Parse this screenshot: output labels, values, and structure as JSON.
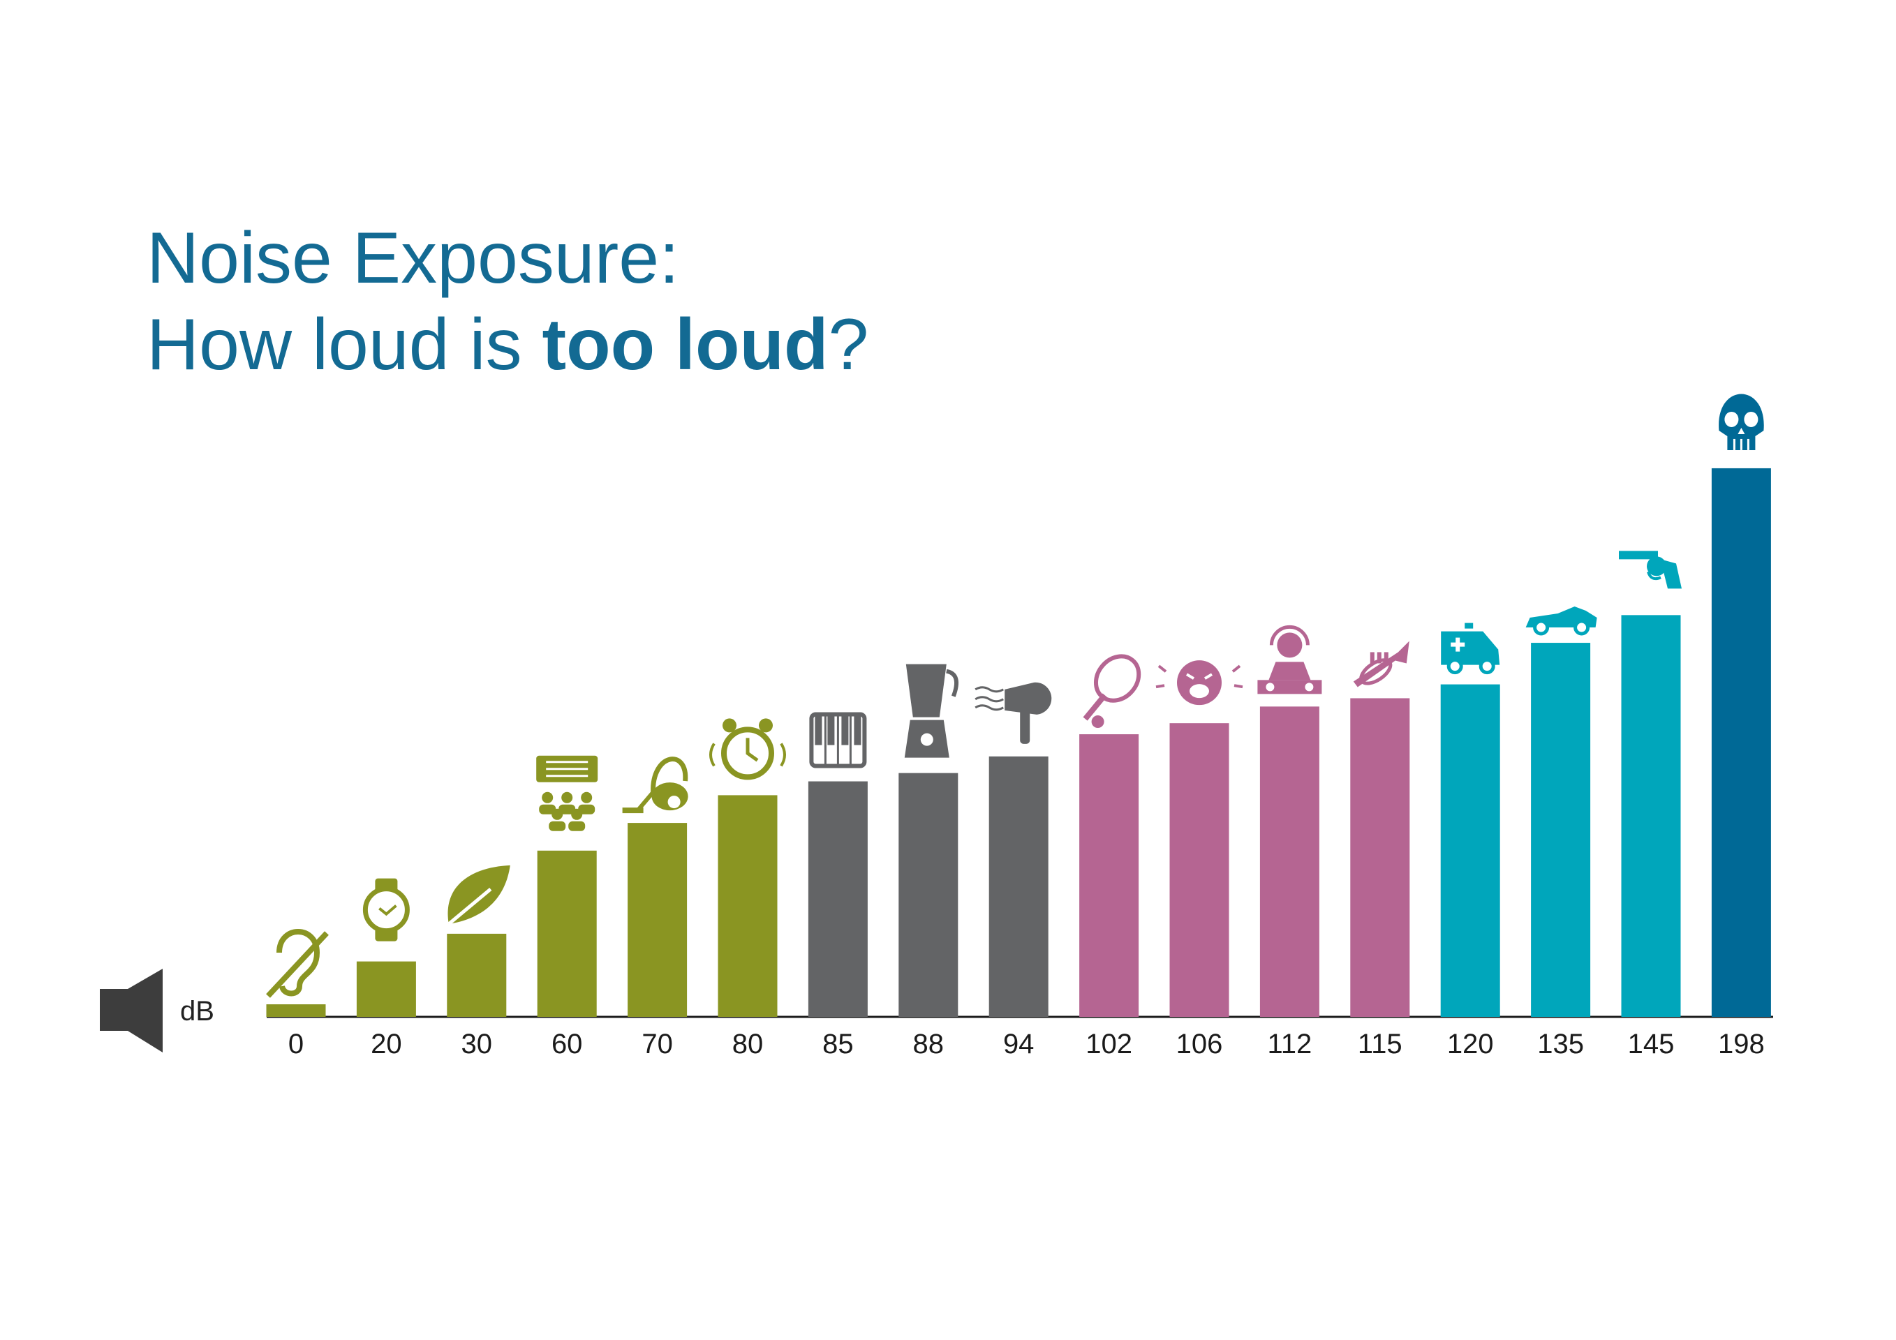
{
  "title": {
    "line1": "Noise Exposure:",
    "line2_pre": "How loud is ",
    "line2_bold": "too loud",
    "line2_post": "?"
  },
  "unit_label": "dB",
  "chart_data": {
    "type": "bar",
    "title": "Noise Exposure: How loud is too loud?",
    "xlabel": "",
    "ylabel": "dB",
    "ylim": [
      0,
      198
    ],
    "categories": [
      "0",
      "20",
      "30",
      "60",
      "70",
      "80",
      "85",
      "88",
      "94",
      "102",
      "106",
      "112",
      "115",
      "120",
      "135",
      "145",
      "198"
    ],
    "values": [
      0,
      20,
      30,
      60,
      70,
      80,
      85,
      88,
      94,
      102,
      106,
      112,
      115,
      120,
      135,
      145,
      198
    ],
    "icons": [
      "hearing-impaired-icon",
      "watch-icon",
      "leaf-icon",
      "conversation-icon",
      "vacuum-cleaner-icon",
      "alarm-clock-icon",
      "piano-icon",
      "blender-icon",
      "hair-dryer-icon",
      "tennis-racket-icon",
      "crying-baby-icon",
      "dj-icon",
      "trumpet-icon",
      "ambulance-icon",
      "race-car-icon",
      "revolver-icon",
      "skull-icon"
    ],
    "colors": [
      "#8a9522",
      "#8a9522",
      "#8a9522",
      "#8a9522",
      "#8a9522",
      "#8a9522",
      "#636466",
      "#636466",
      "#636466",
      "#b56592",
      "#b56592",
      "#b56592",
      "#b56592",
      "#00a6bb",
      "#00a6bb",
      "#00a6bb",
      "#006996"
    ],
    "grid": false,
    "legend": "none"
  }
}
